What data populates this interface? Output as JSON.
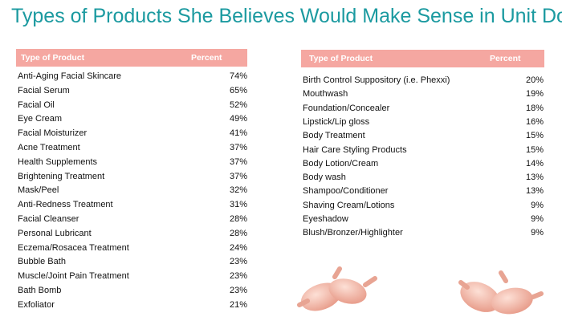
{
  "header": {
    "title": "Types of Products She Believes Would Make Sense in Unit Dose"
  },
  "left_table": {
    "columns": [
      "Type of Product",
      "Percent"
    ],
    "rows": [
      [
        "Anti-Aging Facial Skincare",
        "74%"
      ],
      [
        "Facial Serum",
        "65%"
      ],
      [
        "Facial Oil",
        "52%"
      ],
      [
        "Eye Cream",
        "49%"
      ],
      [
        "Facial Moisturizer",
        "41%"
      ],
      [
        "Acne Treatment",
        "37%"
      ],
      [
        "Health Supplements",
        "37%"
      ],
      [
        "Brightening Treatment",
        "37%"
      ],
      [
        "Mask/Peel",
        "32%"
      ],
      [
        "Anti-Redness Treatment",
        "31%"
      ],
      [
        "Facial Cleanser",
        "28%"
      ],
      [
        "Personal Lubricant",
        "28%"
      ],
      [
        "Eczema/Rosacea Treatment",
        "24%"
      ],
      [
        "Bubble Bath",
        "23%"
      ],
      [
        "Muscle/Joint Pain Treatment",
        "23%"
      ],
      [
        "Bath Bomb",
        "23%"
      ],
      [
        "Exfoliator",
        "21%"
      ]
    ]
  },
  "right_table": {
    "columns": [
      "Type of Product",
      "Percent"
    ],
    "rows": [
      [
        "Birth Control Suppository (i.e. Phexxi)",
        "20%"
      ],
      [
        "Mouthwash",
        "19%"
      ],
      [
        "Foundation/Concealer",
        "18%"
      ],
      [
        "Lipstick/Lip gloss",
        "16%"
      ],
      [
        "Body Treatment",
        "15%"
      ],
      [
        "Hair Care Styling Products",
        "15%"
      ],
      [
        "Body Lotion/Cream",
        "14%"
      ],
      [
        "Body wash",
        "13%"
      ],
      [
        "Shampoo/Conditioner",
        "13%"
      ],
      [
        "Shaving Cream/Lotions",
        "9%"
      ],
      [
        "Eyeshadow",
        "9%"
      ],
      [
        "Blush/Bronzer/Highlighter",
        "9%"
      ]
    ]
  }
}
